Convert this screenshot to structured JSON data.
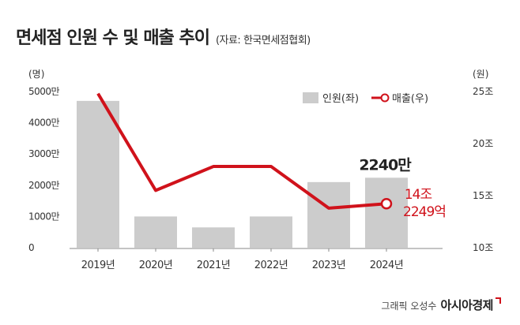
{
  "title": "면세점 인원 수 및 매출 추이",
  "source": "(자료: 한국면세점협회)",
  "credit": "그래픽 오성수",
  "brand": "아시아경제",
  "colors": {
    "bar": "#cccccc",
    "line": "#d0121b",
    "text": "#222222",
    "axis": "#888888"
  },
  "chart_data": {
    "type": "bar+line",
    "categories": [
      "2019년",
      "2020년",
      "2021년",
      "2022년",
      "2023년",
      "2024년"
    ],
    "legend_position": "top-right",
    "grid": false,
    "left_axis": {
      "unit": "(명)",
      "ylim": [
        0,
        5000
      ],
      "ticks": [
        0,
        1000,
        2000,
        3000,
        4000,
        5000
      ],
      "tick_labels": [
        "0",
        "1000만",
        "2000만",
        "3000만",
        "4000만",
        "5000만"
      ]
    },
    "right_axis": {
      "unit": "(원)",
      "ylim": [
        10,
        25
      ],
      "ticks": [
        10,
        15,
        20,
        25
      ],
      "tick_labels": [
        "10조",
        "15조",
        "20조",
        "25조"
      ]
    },
    "series": [
      {
        "name": "인원(좌)",
        "type": "bar",
        "axis": "left",
        "values": [
          4700,
          1000,
          650,
          1000,
          2100,
          2240
        ]
      },
      {
        "name": "매출(우)",
        "type": "line",
        "axis": "right",
        "values": [
          24.8,
          15.5,
          17.8,
          17.8,
          13.8,
          14.2249
        ]
      }
    ],
    "annotations": [
      {
        "target": "인원",
        "category": "2024년",
        "text": "2240만"
      },
      {
        "target": "매출",
        "category": "2024년",
        "lines": [
          "14조",
          "2249억"
        ]
      }
    ]
  }
}
